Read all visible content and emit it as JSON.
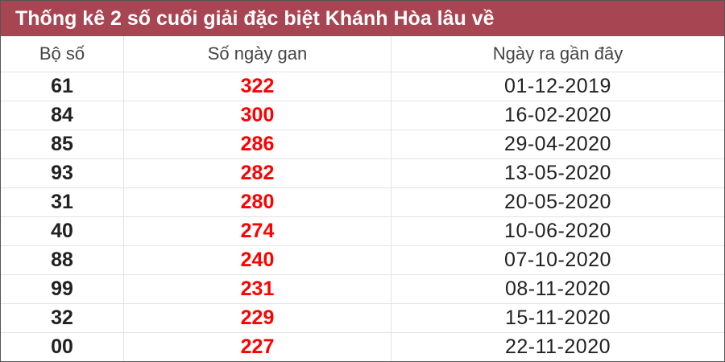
{
  "title": "Thống kê 2 số cuối giải đặc biệt Khánh Hòa lâu về",
  "colors": {
    "header_bg": "#a84552",
    "gan_text": "#ff0000"
  },
  "columns": [
    "Bộ số",
    "Số ngày gan",
    "Ngày ra gần đây"
  ],
  "rows": [
    {
      "bo_so": "61",
      "so_ngay_gan": "322",
      "ngay_ra": "01-12-2019"
    },
    {
      "bo_so": "84",
      "so_ngay_gan": "300",
      "ngay_ra": "16-02-2020"
    },
    {
      "bo_so": "85",
      "so_ngay_gan": "286",
      "ngay_ra": "29-04-2020"
    },
    {
      "bo_so": "93",
      "so_ngay_gan": "282",
      "ngay_ra": "13-05-2020"
    },
    {
      "bo_so": "31",
      "so_ngay_gan": "280",
      "ngay_ra": "20-05-2020"
    },
    {
      "bo_so": "40",
      "so_ngay_gan": "274",
      "ngay_ra": "10-06-2020"
    },
    {
      "bo_so": "88",
      "so_ngay_gan": "240",
      "ngay_ra": "07-10-2020"
    },
    {
      "bo_so": "99",
      "so_ngay_gan": "231",
      "ngay_ra": "08-11-2020"
    },
    {
      "bo_so": "32",
      "so_ngay_gan": "229",
      "ngay_ra": "15-11-2020"
    },
    {
      "bo_so": "00",
      "so_ngay_gan": "227",
      "ngay_ra": "22-11-2020"
    }
  ]
}
